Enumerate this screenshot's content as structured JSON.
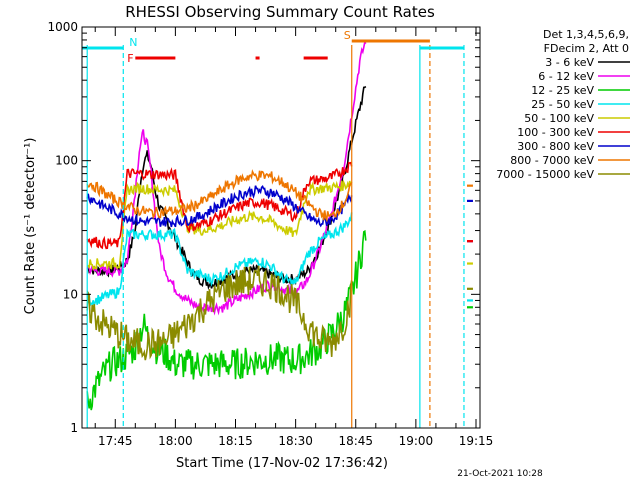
{
  "chart_data": {
    "type": "line",
    "title": "RHESSI Observing Summary Count Rates",
    "xlabel": "Start Time (17-Nov-02 17:36:42)",
    "ylabel": "Count Rate (s⁻¹ detector⁻¹)",
    "yscale": "log",
    "ylim": [
      1,
      1000
    ],
    "xlim": [
      "17:36:42",
      "19:16:00"
    ],
    "y_ticks": [
      "1",
      "10",
      "100",
      "1000"
    ],
    "x_ticks": [
      "17:45",
      "18:00",
      "18:15",
      "18:30",
      "18:45",
      "19:00",
      "19:15"
    ],
    "grid": false,
    "legend_position": "right",
    "legend_header": [
      "Det 1,3,4,5,6,9,",
      "FDecim 2, Att 0"
    ],
    "timestamp": "21-Oct-2021 10:28",
    "flags": [
      {
        "label": "N",
        "color": "#00e5ee",
        "segments": [
          [
            "17:36:42",
            "17:47:00"
          ],
          [
            "19:01:00",
            "19:12:00"
          ]
        ]
      },
      {
        "label": "F",
        "color": "#ee0000",
        "segments": [
          [
            "17:50:00",
            "18:00:00"
          ],
          [
            "18:20:00",
            "18:21:00"
          ],
          [
            "18:32:00",
            "18:38:00"
          ]
        ]
      },
      {
        "label": "S",
        "color": "#ee7600",
        "segments": [
          [
            "18:44:00",
            "19:03:30"
          ]
        ]
      }
    ],
    "vlines": [
      {
        "time": "17:38:00",
        "color": "#00e5ee",
        "style": "solid"
      },
      {
        "time": "17:47:00",
        "color": "#00e5ee",
        "style": "dashed"
      },
      {
        "time": "18:44:00",
        "color": "#ee7600",
        "style": "solid"
      },
      {
        "time": "19:01:00",
        "color": "#00e5ee",
        "style": "solid"
      },
      {
        "time": "19:03:30",
        "color": "#ee7600",
        "style": "dashed"
      },
      {
        "time": "19:12:00",
        "color": "#00e5ee",
        "style": "dashed"
      }
    ],
    "gaps": [
      [
        "18:48:00",
        "19:10:00"
      ]
    ],
    "series": [
      {
        "name": "3 - 6 keV",
        "color": "#000000",
        "points": [
          [
            "17:38",
            16
          ],
          [
            "17:40",
            15
          ],
          [
            "17:42",
            15
          ],
          [
            "17:44",
            15
          ],
          [
            "17:46",
            16
          ],
          [
            "17:48",
            18
          ],
          [
            "17:50",
            30
          ],
          [
            "17:51",
            60
          ],
          [
            "17:52",
            95
          ],
          [
            "17:53",
            110
          ],
          [
            "17:54",
            90
          ],
          [
            "17:55",
            60
          ],
          [
            "17:56",
            45
          ],
          [
            "17:58",
            35
          ],
          [
            "18:00",
            26
          ],
          [
            "18:02",
            20
          ],
          [
            "18:04",
            15
          ],
          [
            "18:06",
            13
          ],
          [
            "18:09",
            12
          ],
          [
            "18:12",
            13
          ],
          [
            "18:15",
            14
          ],
          [
            "18:18",
            15
          ],
          [
            "18:21",
            15
          ],
          [
            "18:24",
            14
          ],
          [
            "18:27",
            13
          ],
          [
            "18:30",
            13
          ],
          [
            "18:33",
            15
          ],
          [
            "18:36",
            22
          ],
          [
            "18:39",
            38
          ],
          [
            "18:42",
            75
          ],
          [
            "18:44",
            140
          ],
          [
            "18:46",
            250
          ],
          [
            "18:47.5",
            370
          ]
        ]
      },
      {
        "name": "6 - 12 keV",
        "color": "#ee00ee",
        "points": [
          [
            "17:38",
            16
          ],
          [
            "17:40",
            15
          ],
          [
            "17:42",
            15
          ],
          [
            "17:44",
            15
          ],
          [
            "17:46",
            15
          ],
          [
            "17:48",
            18
          ],
          [
            "17:50",
            60
          ],
          [
            "17:51",
            120
          ],
          [
            "17:52",
            160
          ],
          [
            "17:53",
            130
          ],
          [
            "17:54",
            80
          ],
          [
            "17:55",
            40
          ],
          [
            "17:56",
            22
          ],
          [
            "17:58",
            14
          ],
          [
            "18:00",
            11
          ],
          [
            "18:03",
            9
          ],
          [
            "18:06",
            8
          ],
          [
            "18:09",
            8
          ],
          [
            "18:12",
            8
          ],
          [
            "18:15",
            9
          ],
          [
            "18:18",
            10
          ],
          [
            "18:21",
            11
          ],
          [
            "18:24",
            12
          ],
          [
            "18:27",
            11
          ],
          [
            "18:30",
            10
          ],
          [
            "18:33",
            13
          ],
          [
            "18:36",
            22
          ],
          [
            "18:39",
            40
          ],
          [
            "18:42",
            90
          ],
          [
            "18:44",
            220
          ],
          [
            "18:46",
            550
          ],
          [
            "18:47.5",
            800
          ]
        ]
      },
      {
        "name": "12 - 25 keV",
        "color": "#00cc00",
        "points": [
          [
            "17:38",
            1.5
          ],
          [
            "17:40",
            2
          ],
          [
            "17:42",
            2.5
          ],
          [
            "17:44",
            3
          ],
          [
            "17:46",
            3.2
          ],
          [
            "17:48",
            3.5
          ],
          [
            "17:50",
            4
          ],
          [
            "17:51",
            5
          ],
          [
            "17:52",
            6
          ],
          [
            "17:53",
            5
          ],
          [
            "17:55",
            4
          ],
          [
            "17:58",
            3.5
          ],
          [
            "18:00",
            3
          ],
          [
            "18:05",
            3
          ],
          [
            "18:10",
            3
          ],
          [
            "18:15",
            3
          ],
          [
            "18:20",
            3.2
          ],
          [
            "18:25",
            3.3
          ],
          [
            "18:30",
            3.2
          ],
          [
            "18:33",
            3.5
          ],
          [
            "18:36",
            4
          ],
          [
            "18:39",
            5
          ],
          [
            "18:42",
            7
          ],
          [
            "18:44",
            10
          ],
          [
            "18:46",
            18
          ],
          [
            "18:47.5",
            30
          ]
        ]
      },
      {
        "name": "25 - 50 keV",
        "color": "#00e5ee",
        "points": [
          [
            "17:38",
            9
          ],
          [
            "17:40",
            9
          ],
          [
            "17:42",
            9.5
          ],
          [
            "17:44",
            10
          ],
          [
            "17:46",
            10.5
          ],
          [
            "17:48",
            28
          ],
          [
            "17:50",
            28
          ],
          [
            "17:52",
            28
          ],
          [
            "17:54",
            28
          ],
          [
            "17:56",
            28
          ],
          [
            "17:58",
            28
          ],
          [
            "18:00",
            28
          ],
          [
            "18:03",
            15
          ],
          [
            "18:06",
            14
          ],
          [
            "18:09",
            13
          ],
          [
            "18:12",
            14
          ],
          [
            "18:15",
            16
          ],
          [
            "18:18",
            17
          ],
          [
            "18:21",
            18
          ],
          [
            "18:24",
            16
          ],
          [
            "18:27",
            13
          ],
          [
            "18:30",
            12
          ],
          [
            "18:33",
            20
          ],
          [
            "18:36",
            25
          ],
          [
            "18:39",
            28
          ],
          [
            "18:42",
            32
          ],
          [
            "18:44",
            38
          ]
        ]
      },
      {
        "name": "50 - 100 keV",
        "color": "#cccc00",
        "points": [
          [
            "17:38",
            17
          ],
          [
            "17:40",
            17
          ],
          [
            "17:42",
            17
          ],
          [
            "17:44",
            17
          ],
          [
            "17:46",
            17
          ],
          [
            "17:48",
            60
          ],
          [
            "17:50",
            62
          ],
          [
            "17:52",
            62
          ],
          [
            "17:54",
            61
          ],
          [
            "17:56",
            61
          ],
          [
            "17:58",
            60
          ],
          [
            "18:00",
            60
          ],
          [
            "18:03",
            32
          ],
          [
            "18:06",
            30
          ],
          [
            "18:09",
            31
          ],
          [
            "18:12",
            33
          ],
          [
            "18:15",
            36
          ],
          [
            "18:18",
            38
          ],
          [
            "18:21",
            38
          ],
          [
            "18:24",
            35
          ],
          [
            "18:27",
            31
          ],
          [
            "18:30",
            28
          ],
          [
            "18:33",
            60
          ],
          [
            "18:36",
            62
          ],
          [
            "18:39",
            63
          ],
          [
            "18:42",
            65
          ],
          [
            "18:44",
            70
          ]
        ]
      },
      {
        "name": "100 - 300 keV",
        "color": "#ee0000",
        "points": [
          [
            "17:38",
            26
          ],
          [
            "17:40",
            25
          ],
          [
            "17:42",
            24
          ],
          [
            "17:44",
            24
          ],
          [
            "17:46",
            24
          ],
          [
            "17:48",
            80
          ],
          [
            "17:50",
            80
          ],
          [
            "17:52",
            80
          ],
          [
            "17:54",
            79
          ],
          [
            "17:56",
            79
          ],
          [
            "17:58",
            78
          ],
          [
            "18:00",
            78
          ],
          [
            "18:03",
            32
          ],
          [
            "18:06",
            33
          ],
          [
            "18:09",
            36
          ],
          [
            "18:12",
            40
          ],
          [
            "18:15",
            44
          ],
          [
            "18:18",
            48
          ],
          [
            "18:21",
            49
          ],
          [
            "18:24",
            46
          ],
          [
            "18:27",
            42
          ],
          [
            "18:30",
            38
          ],
          [
            "18:33",
            70
          ],
          [
            "18:36",
            72
          ],
          [
            "18:39",
            75
          ],
          [
            "18:42",
            85
          ],
          [
            "18:44",
            95
          ]
        ]
      },
      {
        "name": "300 - 800 keV",
        "color": "#0000cc",
        "points": [
          [
            "17:38",
            55
          ],
          [
            "17:40",
            50
          ],
          [
            "17:42",
            46
          ],
          [
            "17:44",
            43
          ],
          [
            "17:46",
            40
          ],
          [
            "17:48",
            38
          ],
          [
            "17:50",
            36
          ],
          [
            "17:52",
            35
          ],
          [
            "17:54",
            35
          ],
          [
            "17:56",
            35
          ],
          [
            "17:58",
            35
          ],
          [
            "18:00",
            35
          ],
          [
            "18:03",
            36
          ],
          [
            "18:06",
            38
          ],
          [
            "18:09",
            43
          ],
          [
            "18:12",
            48
          ],
          [
            "18:15",
            54
          ],
          [
            "18:18",
            58
          ],
          [
            "18:21",
            60
          ],
          [
            "18:24",
            58
          ],
          [
            "18:27",
            52
          ],
          [
            "18:30",
            45
          ],
          [
            "18:33",
            38
          ],
          [
            "18:36",
            34
          ],
          [
            "18:39",
            36
          ],
          [
            "18:42",
            45
          ],
          [
            "18:44",
            55
          ]
        ]
      },
      {
        "name": "800 - 7000 keV",
        "color": "#ee7600",
        "points": [
          [
            "17:38",
            70
          ],
          [
            "17:40",
            64
          ],
          [
            "17:42",
            58
          ],
          [
            "17:44",
            53
          ],
          [
            "17:46",
            49
          ],
          [
            "17:48",
            46
          ],
          [
            "17:50",
            43
          ],
          [
            "17:52",
            42
          ],
          [
            "17:54",
            41
          ],
          [
            "17:56",
            41
          ],
          [
            "17:58",
            42
          ],
          [
            "18:00",
            42
          ],
          [
            "18:03",
            44
          ],
          [
            "18:06",
            48
          ],
          [
            "18:09",
            54
          ],
          [
            "18:12",
            62
          ],
          [
            "18:15",
            70
          ],
          [
            "18:18",
            76
          ],
          [
            "18:21",
            78
          ],
          [
            "18:24",
            76
          ],
          [
            "18:27",
            68
          ],
          [
            "18:30",
            58
          ],
          [
            "18:33",
            48
          ],
          [
            "18:36",
            40
          ],
          [
            "18:39",
            38
          ],
          [
            "18:42",
            48
          ],
          [
            "18:44",
            65
          ]
        ]
      },
      {
        "name": "7000 - 15000 keV",
        "color": "#8b8b00",
        "points": [
          [
            "17:38",
            8
          ],
          [
            "17:40",
            7
          ],
          [
            "17:42",
            6
          ],
          [
            "17:44",
            5.5
          ],
          [
            "17:46",
            5
          ],
          [
            "17:48",
            4.5
          ],
          [
            "17:50",
            4.3
          ],
          [
            "17:52",
            4.2
          ],
          [
            "17:54",
            4.2
          ],
          [
            "17:56",
            4.3
          ],
          [
            "17:58",
            4.5
          ],
          [
            "18:00",
            5
          ],
          [
            "18:03",
            6
          ],
          [
            "18:06",
            7.5
          ],
          [
            "18:09",
            9
          ],
          [
            "18:12",
            11
          ],
          [
            "18:15",
            12
          ],
          [
            "18:18",
            12.5
          ],
          [
            "18:21",
            12.5
          ],
          [
            "18:24",
            12
          ],
          [
            "18:27",
            10.5
          ],
          [
            "18:30",
            8.5
          ],
          [
            "18:33",
            6
          ],
          [
            "18:36",
            4.5
          ],
          [
            "18:39",
            4.3
          ],
          [
            "18:42",
            6
          ],
          [
            "18:44",
            10
          ]
        ]
      }
    ],
    "resumed": [
      {
        "name": "3 - 6 keV",
        "value": 25
      },
      {
        "name": "6 - 12 keV",
        "value": 25
      },
      {
        "name": "12 - 25 keV",
        "value": 8
      },
      {
        "name": "25 - 50 keV",
        "value": 9
      },
      {
        "name": "50 - 100 keV",
        "value": 17
      },
      {
        "name": "100 - 300 keV",
        "value": 25
      },
      {
        "name": "300 - 800 keV",
        "value": 50
      },
      {
        "name": "800 - 7000 keV",
        "value": 65
      },
      {
        "name": "7000 - 15000 keV",
        "value": 11
      }
    ],
    "resume_time": "19:10:00"
  }
}
